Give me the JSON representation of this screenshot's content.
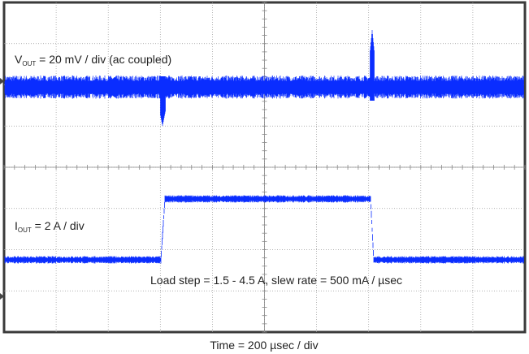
{
  "vout_label": {
    "symbol": "V",
    "subscript": "OUT",
    "text": " = 20 mV / div (ac coupled)"
  },
  "iout_label": {
    "symbol": "I",
    "subscript": "OUT",
    "text": " = 2 A / div"
  },
  "load_step_note": "Load step = 1.5 - 4.5 A, slew rate = 500 mA / µsec",
  "time_label": "Time = 200 µsec / div"
}
